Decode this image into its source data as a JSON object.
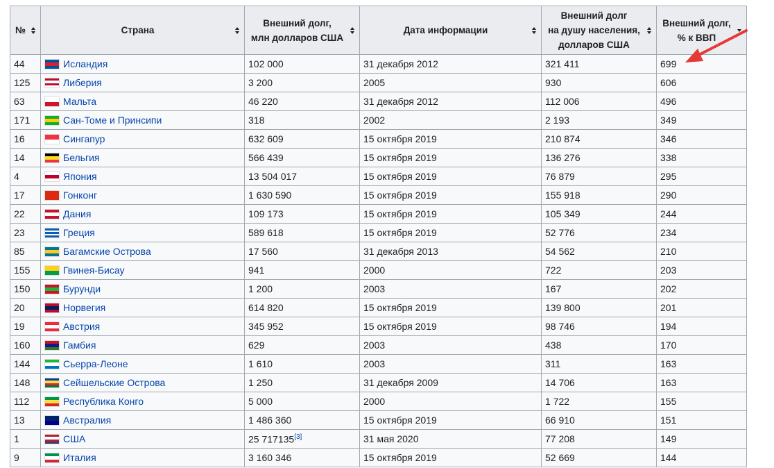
{
  "table": {
    "header": [
      "№",
      "Страна",
      "Внешний долг,\nмлн долларов США",
      "Дата информации",
      "Внешний долг\nна душу населения,\nдолларов США",
      "Внешний долг,\n% к ВВП"
    ],
    "rows": [
      [
        "44",
        "Исландия",
        "102 000",
        "31 декабря 2012",
        "321 411",
        "699"
      ],
      [
        "125",
        "Либерия",
        "3 200",
        "2005",
        "930",
        "606"
      ],
      [
        "63",
        "Мальта",
        "46 220",
        "31 декабря 2012",
        "112 006",
        "496"
      ],
      [
        "171",
        "Сан-Томе и Принсипи",
        "318",
        "2002",
        "2 193",
        "349"
      ],
      [
        "16",
        "Сингапур",
        "632 609",
        "15 октября 2019",
        "210 874",
        "346"
      ],
      [
        "14",
        "Бельгия",
        "566 439",
        "15 октября 2019",
        "136 276",
        "338"
      ],
      [
        "4",
        "Япония",
        "13 504 017",
        "15 октября 2019",
        "76 879",
        "295"
      ],
      [
        "17",
        "Гонконг",
        "1 630 590",
        "15 октября 2019",
        "155 918",
        "290"
      ],
      [
        "22",
        "Дания",
        "109 173",
        "15 октября 2019",
        "105 349",
        "244"
      ],
      [
        "23",
        "Греция",
        "589 618",
        "15 октября 2019",
        "52 776",
        "234"
      ],
      [
        "85",
        "Багамские Острова",
        "17 560",
        "31 декабря 2013",
        "54 562",
        "210"
      ],
      [
        "155",
        "Гвинея-Бисау",
        "941",
        "2000",
        "722",
        "203"
      ],
      [
        "150",
        "Бурунди",
        "1 200",
        "2003",
        "167",
        "202"
      ],
      [
        "20",
        "Норвегия",
        "614 820",
        "15 октября 2019",
        "139 800",
        "201"
      ],
      [
        "19",
        "Австрия",
        "345 952",
        "15 октября 2019",
        "98 746",
        "194"
      ],
      [
        "160",
        "Гамбия",
        "629",
        "2003",
        "438",
        "170"
      ],
      [
        "144",
        "Сьерра-Леоне",
        "1 610",
        "2003",
        "311",
        "163"
      ],
      [
        "148",
        "Сейшельские Острова",
        "1 250",
        "31 декабря 2009",
        "14 706",
        "163"
      ],
      [
        "112",
        "Республика Конго",
        "5 000",
        "2000",
        "1 722",
        "155"
      ],
      [
        "13",
        "Австралия",
        "1 486 360",
        "15 октября 2019",
        "66 910",
        "151"
      ],
      [
        "1",
        "США",
        {
          "text": "25 717135",
          "ref": "[3]"
        },
        "31 мая 2020",
        "77 208",
        "149"
      ],
      [
        "9",
        "Италия",
        "3 160 346",
        "15 октября 2019",
        "52 669",
        "144"
      ]
    ]
  }
}
